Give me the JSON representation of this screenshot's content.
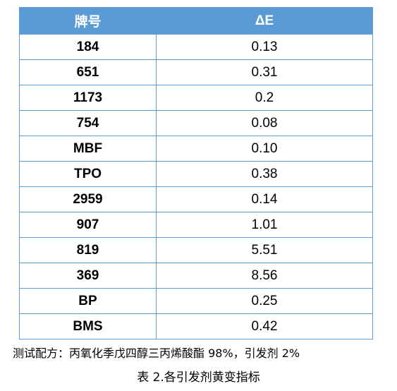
{
  "table": {
    "headers": [
      "牌号",
      "ΔE"
    ],
    "rows": [
      {
        "name": "184",
        "delta_e": "0.13"
      },
      {
        "name": "651",
        "delta_e": "0.31"
      },
      {
        "name": "1173",
        "delta_e": "0.2"
      },
      {
        "name": "754",
        "delta_e": "0.08"
      },
      {
        "name": "MBF",
        "delta_e": "0.10"
      },
      {
        "name": "TPO",
        "delta_e": "0.38"
      },
      {
        "name": "2959",
        "delta_e": "0.14"
      },
      {
        "name": "907",
        "delta_e": "1.01"
      },
      {
        "name": "819",
        "delta_e": "5.51"
      },
      {
        "name": "369",
        "delta_e": "8.56"
      },
      {
        "name": "BP",
        "delta_e": "0.25"
      },
      {
        "name": "BMS",
        "delta_e": "0.42"
      }
    ]
  },
  "note": "测试配方：丙氧化季戊四醇三丙烯酸酯 98%，引发剂 2%",
  "caption": "表 2.各引发剂黄变指标",
  "colors": {
    "header_bg": "#5b9bd5",
    "header_text": "#ffffff",
    "border": "#5b9bd5"
  }
}
